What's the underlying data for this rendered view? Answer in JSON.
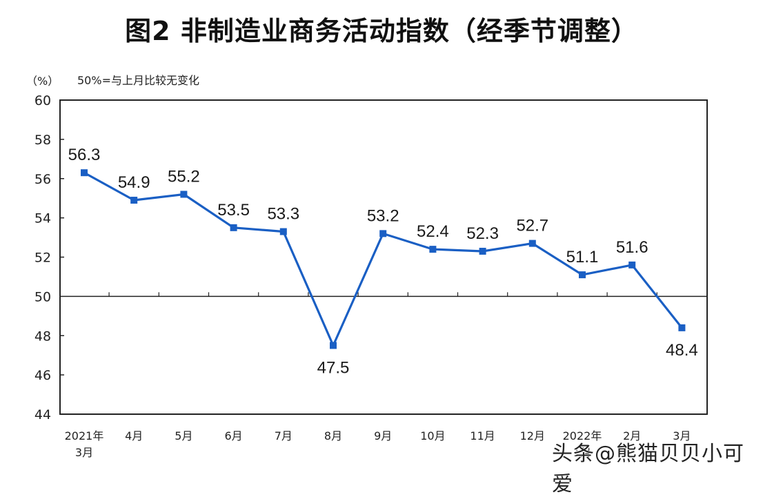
{
  "title": "图2  非制造业商务活动指数（经季节调整）",
  "unit_label": "（%）",
  "note": "50%=与上月比较无变化",
  "watermark": "头条@熊猫贝贝小可爱",
  "colors": {
    "series": "#1a5fc4",
    "axis": "#222222",
    "text": "#1a1a1a"
  },
  "chart_data": {
    "type": "line",
    "title": "图2 非制造业商务活动指数（经季节调整）",
    "xlabel": "",
    "ylabel": "(%)",
    "annotation": "50%=与上月比较无变化",
    "categories": [
      "2021年3月",
      "4月",
      "5月",
      "6月",
      "7月",
      "8月",
      "9月",
      "10月",
      "11月",
      "12月",
      "2022年1月",
      "2月",
      "3月"
    ],
    "category_lines": [
      [
        "2021年",
        "3月"
      ],
      [
        "4月"
      ],
      [
        "5月"
      ],
      [
        "6月"
      ],
      [
        "7月"
      ],
      [
        "8月"
      ],
      [
        "9月"
      ],
      [
        "10月"
      ],
      [
        "11月"
      ],
      [
        "12月"
      ],
      [
        "2022年",
        "1月"
      ],
      [
        "2月"
      ],
      [
        "3月"
      ]
    ],
    "series": [
      {
        "name": "非制造业商务活动指数",
        "values": [
          56.3,
          54.9,
          55.2,
          53.5,
          53.3,
          47.5,
          53.2,
          52.4,
          52.3,
          52.7,
          51.1,
          51.6,
          48.4
        ]
      }
    ],
    "label_positions": [
      "above",
      "above",
      "above",
      "above",
      "above",
      "below",
      "above",
      "above",
      "above",
      "above",
      "above",
      "above",
      "below"
    ],
    "ylim": [
      44,
      60
    ],
    "yticks": [
      44,
      46,
      48,
      50,
      52,
      54,
      56,
      58,
      60
    ],
    "reference_line": 50,
    "grid": false,
    "legend": null
  }
}
